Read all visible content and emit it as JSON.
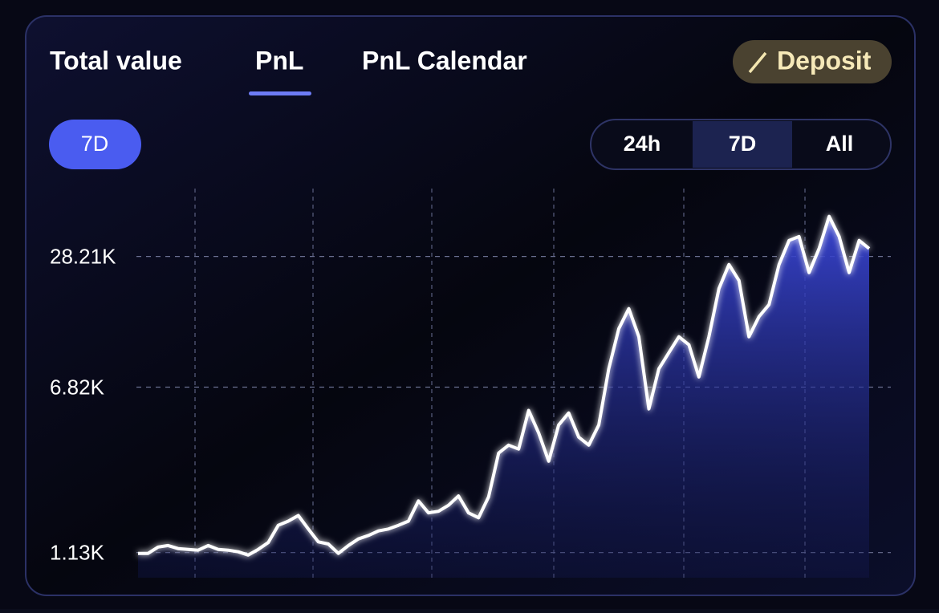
{
  "tabs": [
    "Total value",
    "PnL",
    "PnL Calendar"
  ],
  "deposit_button": "Deposit",
  "range_chip": "7D",
  "segments": [
    "24h",
    "7D",
    "All"
  ],
  "chart_data": {
    "type": "line",
    "values": [
      1120,
      1120,
      1200,
      1220,
      1180,
      1170,
      1160,
      1220,
      1170,
      1160,
      1140,
      1100,
      1170,
      1260,
      1520,
      1590,
      1690,
      1460,
      1270,
      1240,
      1120,
      1220,
      1310,
      1360,
      1430,
      1460,
      1520,
      1590,
      1980,
      1740,
      1770,
      1890,
      2090,
      1740,
      1650,
      2070,
      3330,
      3630,
      3480,
      5290,
      4140,
      3050,
      4520,
      5150,
      3960,
      3630,
      4520,
      8320,
      12860,
      16000,
      11790,
      5380,
      8320,
      9910,
      11790,
      10810,
      7620,
      11790,
      19890,
      25850,
      21710,
      11790,
      14670,
      16710,
      25850,
      33560,
      35040,
      23690,
      30740,
      43600,
      35040,
      23690,
      33560,
      30740
    ],
    "ylim": [
      860,
      59000
    ],
    "yticks": [
      {
        "value": 1130,
        "label": "1.13K"
      },
      {
        "value": 6820,
        "label": "6.82K"
      },
      {
        "value": 28210,
        "label": "28.21K"
      }
    ],
    "log_scale": true,
    "grid": true,
    "color": "#ffffff"
  }
}
